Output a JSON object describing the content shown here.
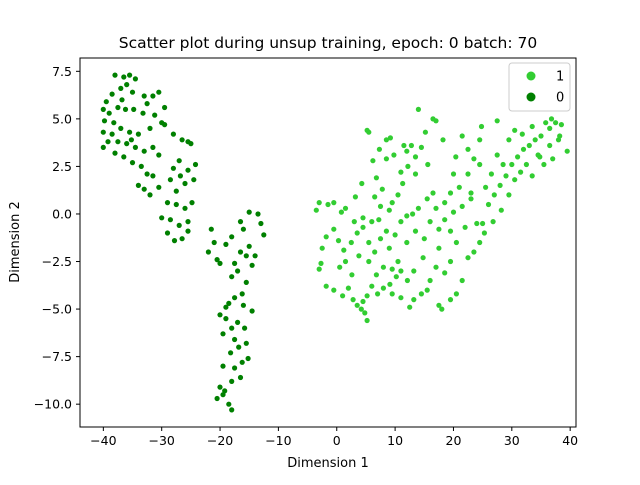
{
  "chart_data": {
    "type": "scatter",
    "title": "Scatter plot during unsup training, epoch: 0 batch: 70",
    "xlabel": "Dimension 1",
    "ylabel": "Dimension 2",
    "xlim": [
      -44,
      41
    ],
    "ylim": [
      -11.2,
      8.2
    ],
    "xticks": [
      -40,
      -30,
      -20,
      -10,
      0,
      10,
      20,
      30,
      40
    ],
    "yticks": [
      -10.0,
      -7.5,
      -5.0,
      -2.5,
      0.0,
      2.5,
      5.0,
      7.5
    ],
    "xtick_labels": [
      "−40",
      "−30",
      "−20",
      "−10",
      "0",
      "10",
      "20",
      "30",
      "40"
    ],
    "ytick_labels": [
      "−10.0",
      "−7.5",
      "−5.0",
      "−2.5",
      "0.0",
      "2.5",
      "5.0",
      "7.5"
    ],
    "grid": false,
    "legend_position": "top-right",
    "series": [
      {
        "name": "1",
        "color": "#32cd32",
        "points": [
          [
            5.2,
            4.4
          ],
          [
            5.5,
            4.3
          ],
          [
            8.5,
            3.9
          ],
          [
            9.2,
            4.0
          ],
          [
            11.5,
            3.6
          ],
          [
            12.0,
            3.3
          ],
          [
            12.8,
            3.6
          ],
          [
            13.5,
            3.0
          ],
          [
            14.5,
            3.5
          ],
          [
            15.2,
            4.3
          ],
          [
            16.5,
            5.0
          ],
          [
            17.0,
            4.9
          ],
          [
            14.0,
            5.5
          ],
          [
            12.2,
            2.5
          ],
          [
            11.0,
            2.2
          ],
          [
            8.5,
            2.9
          ],
          [
            7.8,
            1.3
          ],
          [
            9.5,
            0.6
          ],
          [
            10.5,
            1.0
          ],
          [
            9.0,
            0.2
          ],
          [
            7.2,
            -0.3
          ],
          [
            6.0,
            -0.4
          ],
          [
            4.5,
            -0.2
          ],
          [
            3.0,
            -0.4
          ],
          [
            1.5,
            0.3
          ],
          [
            0.8,
            0.1
          ],
          [
            -0.5,
            0.6
          ],
          [
            -1.5,
            0.5
          ],
          [
            -3.0,
            0.6
          ],
          [
            -3.5,
            0.2
          ],
          [
            -0.5,
            -0.8
          ],
          [
            -1.8,
            -1.2
          ],
          [
            -2.5,
            -1.8
          ],
          [
            -2.7,
            -2.6
          ],
          [
            -3.0,
            -2.9
          ],
          [
            0.5,
            -2.8
          ],
          [
            1.5,
            -2.5
          ],
          [
            2.5,
            -1.5
          ],
          [
            3.5,
            -1.0
          ],
          [
            4.5,
            -0.7
          ],
          [
            5.5,
            -1.5
          ],
          [
            6.5,
            -2.0
          ],
          [
            7.5,
            -1.3
          ],
          [
            8.0,
            -2.8
          ],
          [
            9.5,
            -2.9
          ],
          [
            10.5,
            -2.5
          ],
          [
            11.0,
            -3.0
          ],
          [
            12.0,
            -1.5
          ],
          [
            13.5,
            -0.9
          ],
          [
            15.0,
            -1.3
          ],
          [
            16.0,
            -0.4
          ],
          [
            17.5,
            -0.8
          ],
          [
            18.5,
            -0.3
          ],
          [
            20.0,
            0.1
          ],
          [
            21.5,
            0.4
          ],
          [
            23.0,
            0.8
          ],
          [
            22.0,
            -0.7
          ],
          [
            20.5,
            -1.5
          ],
          [
            19.5,
            -2.5
          ],
          [
            18.5,
            -3.1
          ],
          [
            17.0,
            -2.8
          ],
          [
            16.0,
            -3.5
          ],
          [
            15.5,
            -4.0
          ],
          [
            14.5,
            -4.2
          ],
          [
            13.2,
            -4.5
          ],
          [
            12.5,
            -4.9
          ],
          [
            11.0,
            -4.4
          ],
          [
            9.5,
            -4.2
          ],
          [
            8.0,
            -3.9
          ],
          [
            7.0,
            -4.2
          ],
          [
            6.0,
            -3.8
          ],
          [
            5.2,
            -4.3
          ],
          [
            4.5,
            -4.6
          ],
          [
            4.8,
            -5.2
          ],
          [
            5.2,
            -5.6
          ],
          [
            4.2,
            -5.0
          ],
          [
            3.5,
            -4.8
          ],
          [
            2.8,
            -4.5
          ],
          [
            2.0,
            -3.9
          ],
          [
            1.0,
            -4.3
          ],
          [
            -0.5,
            -4.0
          ],
          [
            -1.8,
            -3.8
          ],
          [
            18.0,
            -5.0
          ],
          [
            17.5,
            -4.8
          ],
          [
            19.5,
            -4.5
          ],
          [
            20.5,
            -4.2
          ],
          [
            21.5,
            -3.5
          ],
          [
            22.5,
            -2.3
          ],
          [
            23.5,
            -2.0
          ],
          [
            24.5,
            -1.5
          ],
          [
            25.0,
            -0.5
          ],
          [
            26.0,
            0.5
          ],
          [
            27.0,
            1.0
          ],
          [
            28.0,
            1.5
          ],
          [
            29.0,
            2.0
          ],
          [
            30.0,
            2.6
          ],
          [
            31.0,
            3.0
          ],
          [
            32.0,
            3.4
          ],
          [
            33.0,
            3.6
          ],
          [
            34.0,
            3.9
          ],
          [
            35.0,
            4.1
          ],
          [
            36.5,
            4.5
          ],
          [
            37.5,
            4.8
          ],
          [
            38.5,
            4.7
          ],
          [
            38.0,
            3.9
          ],
          [
            39.5,
            3.3
          ],
          [
            37.0,
            2.9
          ],
          [
            35.5,
            2.6
          ],
          [
            34.5,
            3.1
          ],
          [
            33.5,
            2.0
          ],
          [
            32.5,
            2.6
          ],
          [
            31.5,
            2.2
          ],
          [
            30.5,
            1.8
          ],
          [
            29.5,
            1.0
          ],
          [
            28.5,
            2.6
          ],
          [
            27.5,
            3.1
          ],
          [
            26.5,
            2.1
          ],
          [
            25.5,
            1.4
          ],
          [
            24.5,
            2.6
          ],
          [
            23.5,
            2.9
          ],
          [
            22.5,
            3.4
          ],
          [
            21.5,
            4.1
          ],
          [
            22.5,
            2.1
          ],
          [
            21.0,
            1.4
          ],
          [
            20.0,
            2.1
          ],
          [
            19.5,
            1.1
          ],
          [
            18.5,
            0.6
          ],
          [
            17.0,
            0.3
          ],
          [
            16.5,
            1.1
          ],
          [
            15.5,
            0.8
          ],
          [
            14.0,
            0.3
          ],
          [
            13.0,
            0.0
          ],
          [
            12.0,
            -0.1
          ],
          [
            11.0,
            -0.4
          ],
          [
            10.0,
            -1.1
          ],
          [
            9.0,
            -1.8
          ],
          [
            8.5,
            -0.9
          ],
          [
            7.5,
            0.4
          ],
          [
            6.5,
            0.9
          ],
          [
            6.8,
            1.9
          ],
          [
            27.5,
            4.9
          ],
          [
            30.5,
            4.4
          ],
          [
            24.5,
            3.9
          ],
          [
            23.0,
            1.1
          ],
          [
            33.5,
            4.6
          ],
          [
            34.8,
            3.0
          ],
          [
            36.5,
            3.6
          ],
          [
            38.2,
            4.1
          ],
          [
            28.2,
            0.2
          ],
          [
            26.8,
            -0.4
          ],
          [
            25.3,
            -1.0
          ],
          [
            24.0,
            -0.5
          ],
          [
            19.5,
            -0.9
          ],
          [
            17.5,
            -1.8
          ],
          [
            14.8,
            -2.3
          ],
          [
            13.2,
            -3.0
          ],
          [
            12.1,
            -3.5
          ],
          [
            10.2,
            -3.3
          ],
          [
            9.1,
            -3.7
          ],
          [
            6.8,
            -3.2
          ],
          [
            5.5,
            -2.5
          ],
          [
            3.8,
            -2.2
          ],
          [
            2.6,
            -3.2
          ],
          [
            1.2,
            -1.9
          ],
          [
            0.3,
            -1.4
          ],
          [
            3.2,
            0.9
          ],
          [
            4.3,
            1.6
          ],
          [
            6.2,
            2.8
          ],
          [
            7.3,
            3.4
          ],
          [
            9.8,
            3.1
          ],
          [
            11.3,
            1.6
          ],
          [
            13.5,
            2.1
          ],
          [
            15.6,
            2.6
          ],
          [
            18.2,
            3.9
          ],
          [
            20.4,
            3.0
          ],
          [
            24.8,
            4.6
          ],
          [
            29.5,
            3.9
          ],
          [
            31.8,
            4.2
          ],
          [
            35.8,
            4.8
          ],
          [
            36.8,
            5.0
          ]
        ]
      },
      {
        "name": "0",
        "color": "#008000",
        "points": [
          [
            -38.0,
            7.3
          ],
          [
            -36.5,
            7.2
          ],
          [
            -35.5,
            7.3
          ],
          [
            -34.5,
            7.1
          ],
          [
            -36.0,
            6.8
          ],
          [
            -37.0,
            6.6
          ],
          [
            -35.0,
            6.4
          ],
          [
            -33.0,
            6.2
          ],
          [
            -31.5,
            6.2
          ],
          [
            -30.5,
            6.4
          ],
          [
            -38.5,
            6.3
          ],
          [
            -39.5,
            5.9
          ],
          [
            -40.0,
            5.5
          ],
          [
            -39.0,
            5.3
          ],
          [
            -37.5,
            5.6
          ],
          [
            -36.2,
            5.5
          ],
          [
            -34.8,
            5.5
          ],
          [
            -33.2,
            5.3
          ],
          [
            -31.2,
            5.2
          ],
          [
            -29.5,
            5.6
          ],
          [
            -39.8,
            4.9
          ],
          [
            -38.2,
            4.8
          ],
          [
            -37.0,
            4.5
          ],
          [
            -35.5,
            4.3
          ],
          [
            -34.0,
            4.2
          ],
          [
            -32.0,
            4.5
          ],
          [
            -30.0,
            4.8
          ],
          [
            -29.5,
            4.7
          ],
          [
            -40.0,
            4.3
          ],
          [
            -38.5,
            4.2
          ],
          [
            -37.5,
            3.8
          ],
          [
            -36.0,
            3.7
          ],
          [
            -34.5,
            3.5
          ],
          [
            -33.0,
            3.3
          ],
          [
            -31.5,
            3.5
          ],
          [
            -30.5,
            3.1
          ],
          [
            -40.0,
            3.5
          ],
          [
            -38.0,
            3.2
          ],
          [
            -36.5,
            3.0
          ],
          [
            -35.0,
            2.7
          ],
          [
            -33.5,
            2.5
          ],
          [
            -32.5,
            2.1
          ],
          [
            -28.0,
            4.2
          ],
          [
            -26.5,
            3.9
          ],
          [
            -25.5,
            3.8
          ],
          [
            -25.0,
            3.7
          ],
          [
            -27.0,
            2.8
          ],
          [
            -25.5,
            2.3
          ],
          [
            -34.0,
            1.5
          ],
          [
            -32.0,
            1.0
          ],
          [
            -30.5,
            1.4
          ],
          [
            -28.5,
            1.8
          ],
          [
            -27.5,
            1.2
          ],
          [
            -26.0,
            1.6
          ],
          [
            -24.5,
            1.8
          ],
          [
            -29.0,
            0.6
          ],
          [
            -27.5,
            0.5
          ],
          [
            -26.0,
            0.3
          ],
          [
            -24.8,
            0.6
          ],
          [
            -30.0,
            -0.2
          ],
          [
            -28.5,
            -0.3
          ],
          [
            -27.0,
            -0.6
          ],
          [
            -25.5,
            -0.4
          ],
          [
            -29.0,
            -1.0
          ],
          [
            -27.8,
            -1.4
          ],
          [
            -26.5,
            -1.3
          ],
          [
            -25.5,
            -0.9
          ],
          [
            -33.0,
            1.3
          ],
          [
            -31.5,
            2.0
          ],
          [
            -28.0,
            2.4
          ],
          [
            -22.0,
            -2.0
          ],
          [
            -21.0,
            -1.5
          ],
          [
            -20.5,
            -2.4
          ],
          [
            -20.0,
            -2.6
          ],
          [
            -19.0,
            -1.6
          ],
          [
            -18.0,
            -1.2
          ],
          [
            -17.5,
            -2.6
          ],
          [
            -16.5,
            -2.0
          ],
          [
            -16.0,
            -0.8
          ],
          [
            -15.0,
            -1.7
          ],
          [
            -14.0,
            -2.2
          ],
          [
            -13.0,
            -0.5
          ],
          [
            -12.5,
            -1.1
          ],
          [
            -13.5,
            0.0
          ],
          [
            -15.0,
            0.1
          ],
          [
            -16.5,
            -0.4
          ],
          [
            -14.5,
            -2.7
          ],
          [
            -15.5,
            -3.6
          ],
          [
            -17.0,
            -3.0
          ],
          [
            -18.0,
            -3.3
          ],
          [
            -16.2,
            -4.2
          ],
          [
            -17.5,
            -4.4
          ],
          [
            -18.5,
            -4.7
          ],
          [
            -19.0,
            -5.5
          ],
          [
            -20.0,
            -5.3
          ],
          [
            -17.0,
            -5.7
          ],
          [
            -16.0,
            -4.8
          ],
          [
            -14.5,
            -5.1
          ],
          [
            -18.0,
            -6.0
          ],
          [
            -19.5,
            -6.3
          ],
          [
            -17.5,
            -6.6
          ],
          [
            -16.8,
            -7.0
          ],
          [
            -15.5,
            -6.8
          ],
          [
            -18.2,
            -7.3
          ],
          [
            -16.2,
            -7.8
          ],
          [
            -17.5,
            -8.1
          ],
          [
            -15.2,
            -7.6
          ],
          [
            -16.5,
            -8.6
          ],
          [
            -18.0,
            -8.8
          ],
          [
            -19.5,
            -8.0
          ],
          [
            -20.0,
            -9.1
          ],
          [
            -19.2,
            -9.3
          ],
          [
            -20.5,
            -9.7
          ],
          [
            -18.5,
            -10.0
          ],
          [
            -18.0,
            -10.3
          ],
          [
            -19.5,
            -9.5
          ],
          [
            -15.8,
            -6.0
          ],
          [
            -19.0,
            -4.9
          ],
          [
            -15.5,
            -2.2
          ],
          [
            -21.5,
            -0.8
          ],
          [
            -26.8,
            2.0
          ],
          [
            -24.2,
            2.6
          ],
          [
            -32.5,
            5.8
          ],
          [
            -36.8,
            6.0
          ],
          [
            -35.2,
            3.9
          ],
          [
            -39.2,
            3.8
          ]
        ]
      }
    ]
  }
}
